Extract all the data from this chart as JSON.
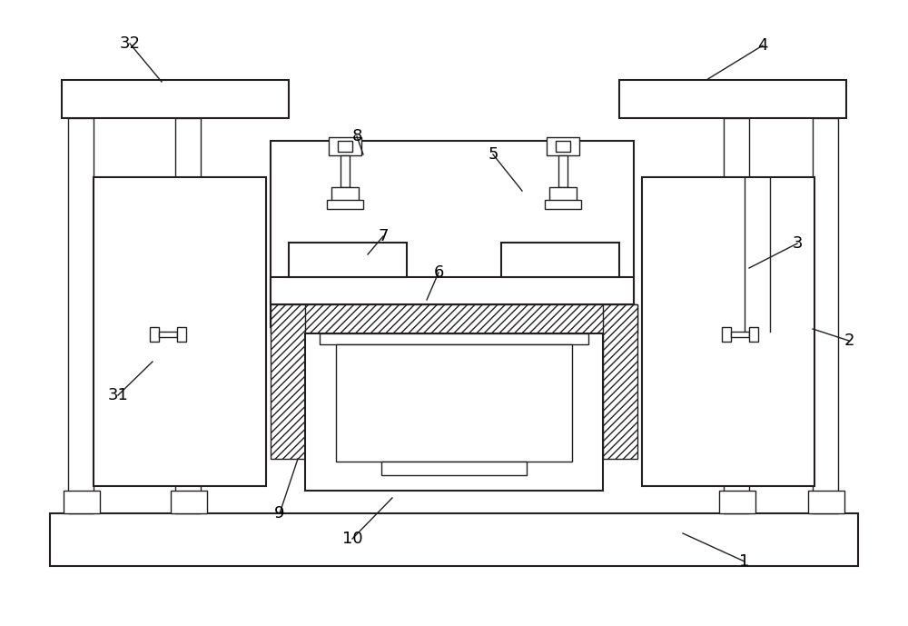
{
  "bg_color": "#ffffff",
  "line_color": "#231f20",
  "figsize": [
    10.0,
    6.89
  ],
  "dpi": 100,
  "label_color": "#000000",
  "label_fontsize": 13
}
